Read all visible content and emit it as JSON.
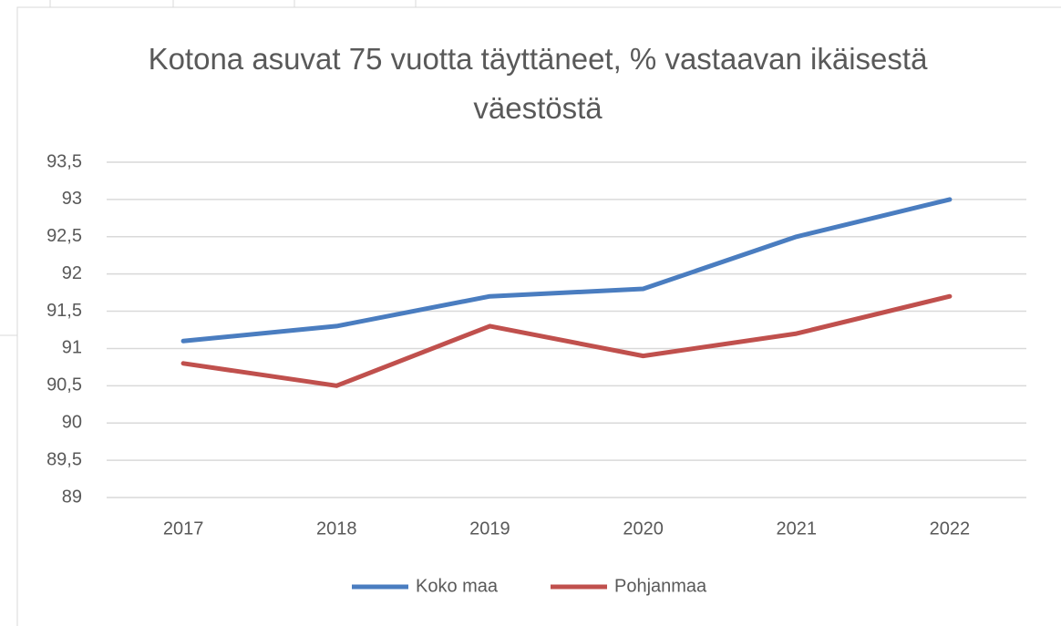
{
  "chart_data": {
    "type": "line",
    "title": "Kotona asuvat 75 vuotta täyttäneet, % vastaavan ikäisestä väestöstä",
    "categories": [
      "2017",
      "2018",
      "2019",
      "2020",
      "2021",
      "2022"
    ],
    "series": [
      {
        "name": "Koko maa",
        "color": "#4a7dc0",
        "values": [
          91.1,
          91.3,
          91.7,
          91.8,
          92.5,
          93.0
        ]
      },
      {
        "name": "Pohjanmaa",
        "color": "#c0504d",
        "values": [
          90.8,
          90.5,
          91.3,
          90.9,
          91.2,
          91.7
        ]
      }
    ],
    "ylim": [
      89,
      93.5
    ],
    "yticks": [
      89,
      {
        "value": 89.5,
        "label": "89,5"
      },
      90,
      {
        "value": 90.5,
        "label": "90,5"
      },
      91,
      {
        "value": 91.5,
        "label": "91,5"
      },
      92,
      {
        "value": 92.5,
        "label": "92,5"
      },
      93,
      {
        "value": 93.5,
        "label": "93,5"
      }
    ],
    "grid": true,
    "legend": "bottom"
  }
}
